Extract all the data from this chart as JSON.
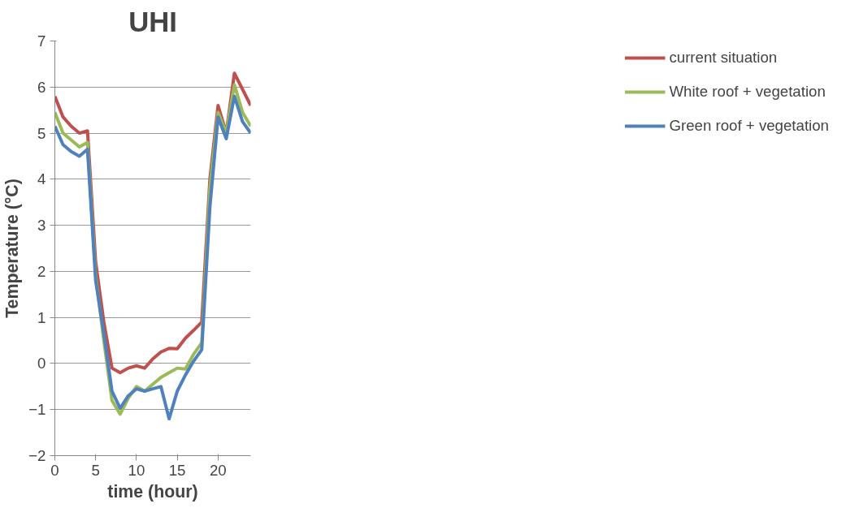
{
  "chart_data": {
    "type": "line",
    "title": "UHI",
    "xlabel": "time (hour)",
    "ylabel": "Temperature (°C)",
    "x": [
      0,
      1,
      2,
      3,
      4,
      5,
      6,
      7,
      8,
      9,
      10,
      11,
      12,
      13,
      14,
      15,
      16,
      17,
      18,
      19,
      20,
      21,
      22,
      23,
      24
    ],
    "series": [
      {
        "name": "current situation",
        "color": "#c0504d",
        "values": [
          5.8,
          5.35,
          5.15,
          5.0,
          5.05,
          2.2,
          0.9,
          -0.1,
          -0.2,
          -0.1,
          -0.05,
          -0.1,
          0.1,
          0.25,
          0.33,
          0.32,
          0.55,
          0.72,
          0.9,
          4.0,
          5.6,
          5.0,
          6.3,
          5.95,
          5.6
        ]
      },
      {
        "name": "White roof + vegetation",
        "color": "#9bbb59",
        "values": [
          5.45,
          5.0,
          4.85,
          4.7,
          4.8,
          1.9,
          0.5,
          -0.8,
          -1.1,
          -0.75,
          -0.5,
          -0.6,
          -0.45,
          -0.3,
          -0.2,
          -0.1,
          -0.12,
          0.2,
          0.45,
          3.8,
          5.45,
          5.0,
          6.05,
          5.45,
          5.15
        ]
      },
      {
        "name": "Green roof + vegetation",
        "color": "#4f81bd",
        "values": [
          5.15,
          4.75,
          4.6,
          4.5,
          4.65,
          1.8,
          0.65,
          -0.6,
          -0.97,
          -0.7,
          -0.55,
          -0.6,
          -0.55,
          -0.5,
          -1.2,
          -0.6,
          -0.25,
          0.05,
          0.3,
          3.4,
          5.35,
          4.88,
          5.8,
          5.25,
          5.0
        ]
      }
    ],
    "xlim": [
      0,
      24
    ],
    "xticks": [
      0,
      5,
      10,
      15,
      20
    ],
    "ylim": [
      -2,
      7
    ],
    "yticks": [
      -2,
      -1,
      0,
      1,
      2,
      3,
      4,
      5,
      6,
      7
    ],
    "grid": "y",
    "legend": "right",
    "marker": "none",
    "line_style": "solid"
  }
}
